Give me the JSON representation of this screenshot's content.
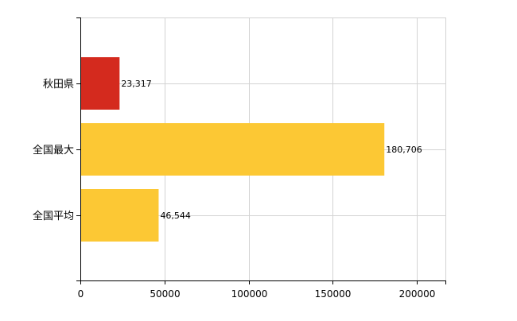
{
  "chart_data": {
    "type": "bar",
    "orientation": "horizontal",
    "categories": [
      "秋田県",
      "全国最大",
      "全国平均"
    ],
    "values": [
      23317,
      180706,
      46544
    ],
    "value_labels": [
      "23,317",
      "180,706",
      "46,544"
    ],
    "bar_colors": [
      "#d42a1e",
      "#fcc834",
      "#fcc834"
    ],
    "xlim": [
      0,
      217000
    ],
    "x_ticks": [
      0,
      50000,
      100000,
      150000,
      200000
    ],
    "x_tick_labels": [
      "0",
      "50000",
      "100000",
      "150000",
      "200000"
    ],
    "grid": true,
    "legend": false
  }
}
